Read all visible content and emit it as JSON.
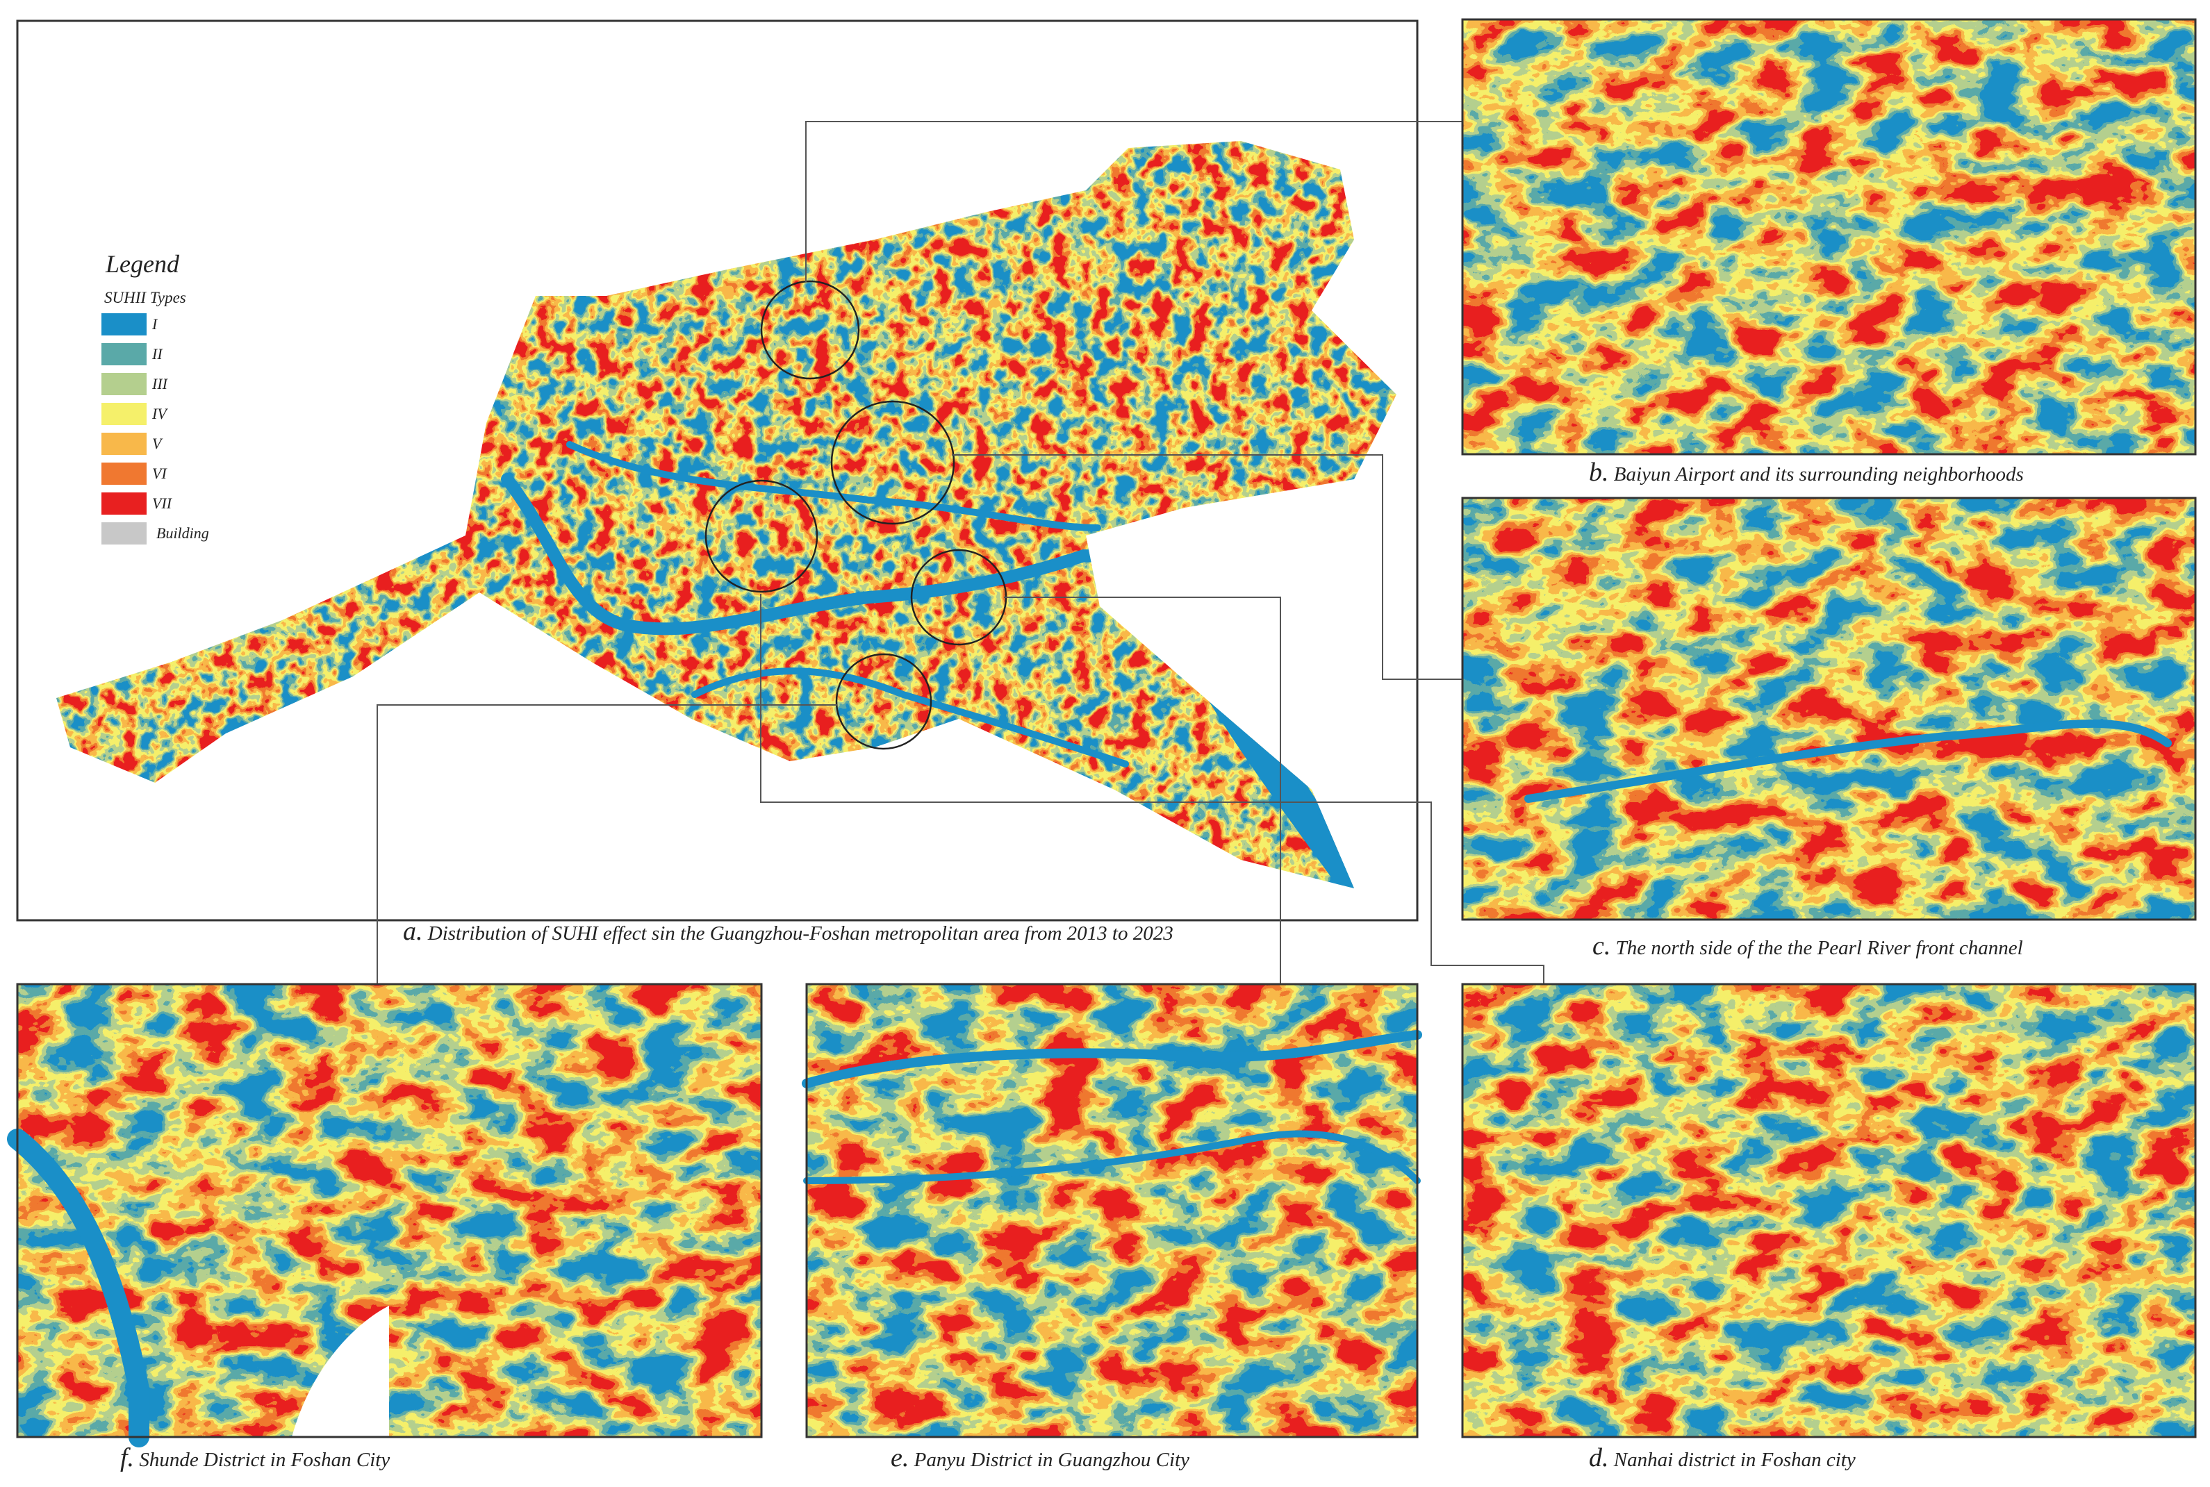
{
  "figure": {
    "legend": {
      "title": "Legend",
      "subtitle": "SUHII Types",
      "items": [
        {
          "label": "I",
          "color": "#1a8fc8"
        },
        {
          "label": "II",
          "color": "#5aa9a8"
        },
        {
          "label": "III",
          "color": "#b4cf8e"
        },
        {
          "label": "IV",
          "color": "#f5f06a"
        },
        {
          "label": "V",
          "color": "#f8b84a"
        },
        {
          "label": "VI",
          "color": "#f07830"
        },
        {
          "label": "VII",
          "color": "#e82020"
        },
        {
          "label": "Building",
          "color": "#c8c8c8"
        }
      ]
    },
    "panels": [
      {
        "label": "a.",
        "caption": "Distribution of SUHI effect sin the Guangzhou-Foshan metropolitan area from 2013 to 2023"
      },
      {
        "label": "b.",
        "caption": "Baiyun Airport and its surrounding neighborhoods"
      },
      {
        "label": "c.",
        "caption": "The north side of the the Pearl River front channel"
      },
      {
        "label": "d.",
        "caption": "Nanhai district in Foshan city"
      },
      {
        "label": "e.",
        "caption": "Panyu District in Guangzhou City"
      },
      {
        "label": "f.",
        "caption": "Shunde District in Foshan City"
      }
    ]
  }
}
